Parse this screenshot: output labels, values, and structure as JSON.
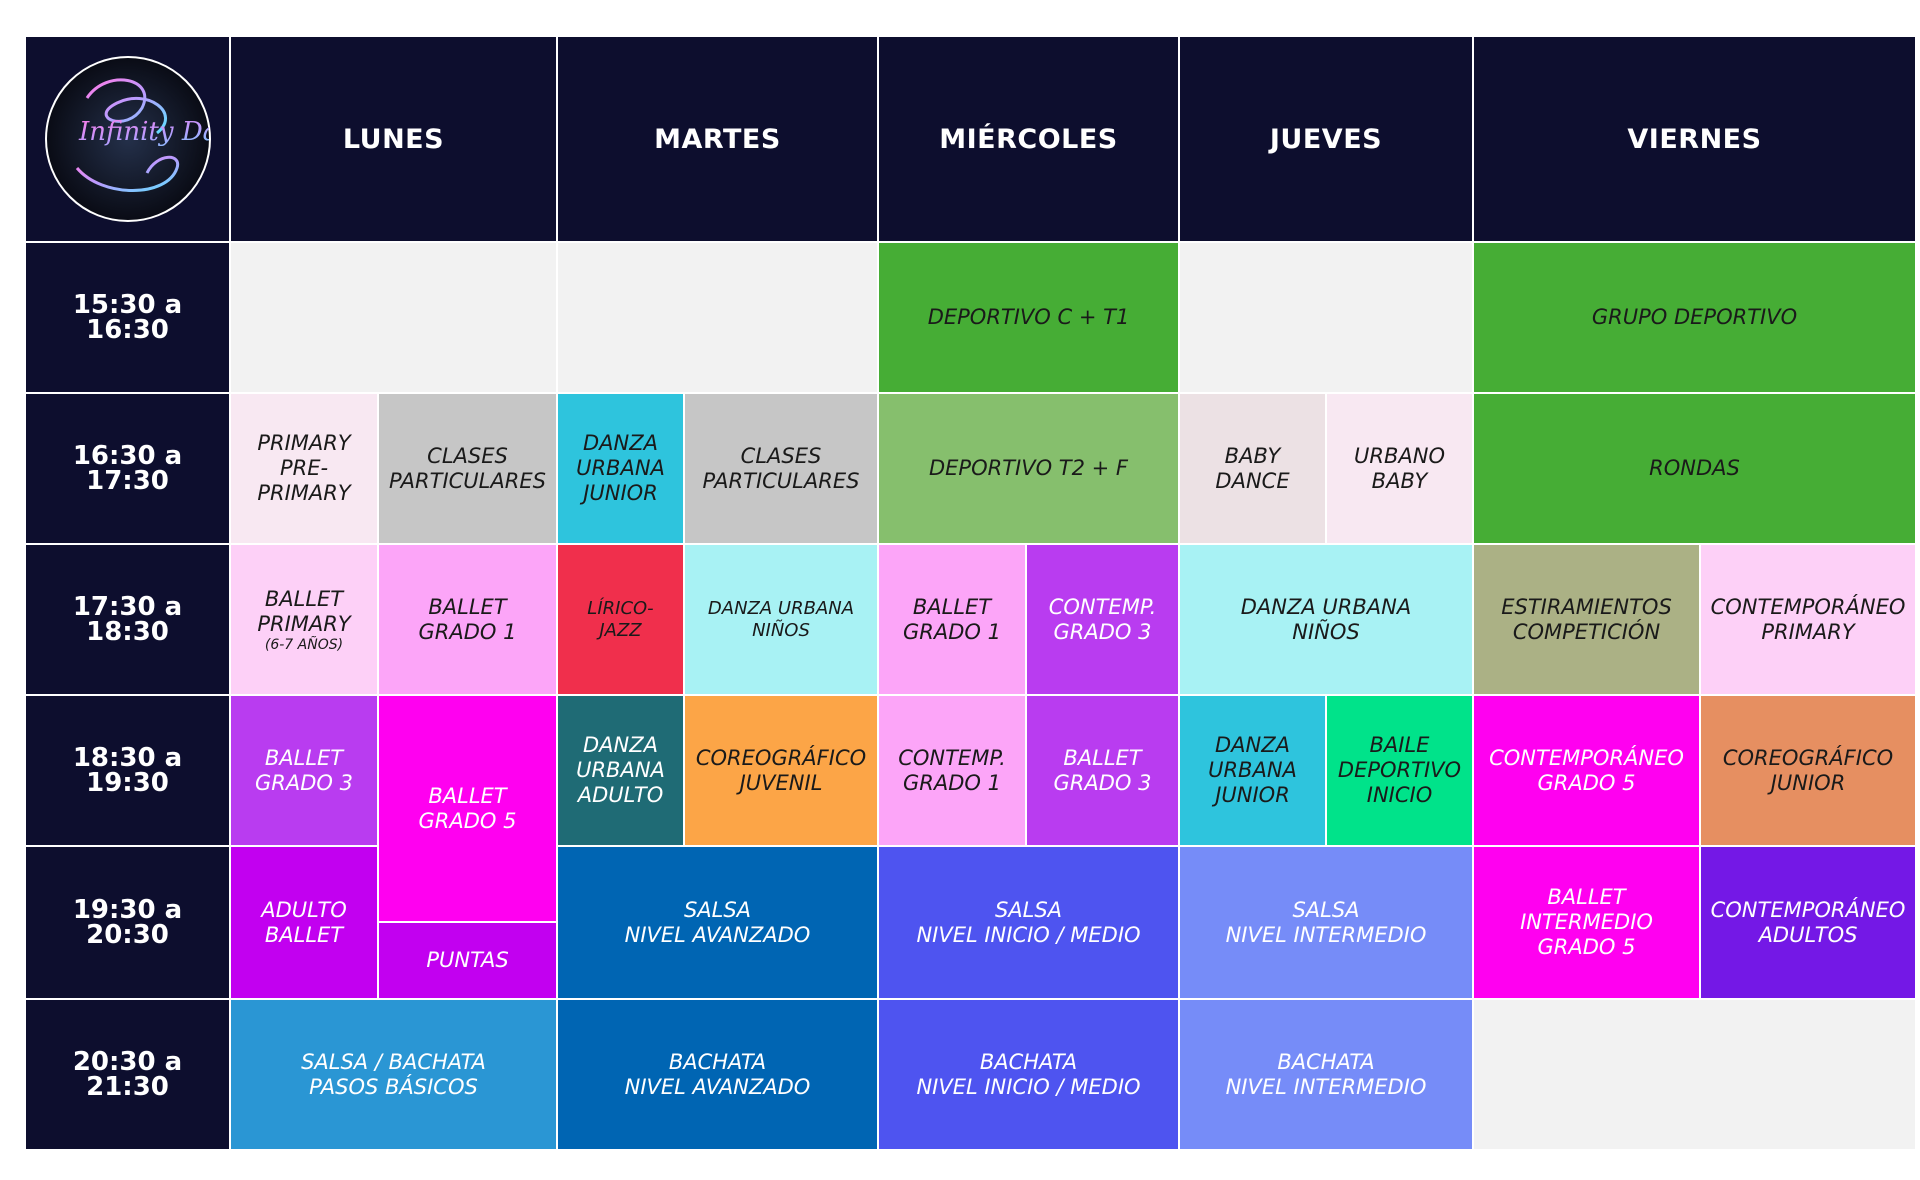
{
  "logo": {
    "text": "Infinity Dance"
  },
  "days": [
    "LUNES",
    "MARTES",
    "MIÉRCOLES",
    "JUEVES",
    "VIERNES"
  ],
  "times": [
    "15:30 a 16:30",
    "16:30 a 17:30",
    "17:30 a 18:30",
    "18:30 a 19:30",
    "19:30 a 20:30",
    "20:30 a 21:30"
  ],
  "classes": {
    "deportivo_ct1": "DEPORTIVO C + T1",
    "grupo_deportivo": "GRUPO DEPORTIVO",
    "primary_preprimary": "PRIMARY\nPRE-\nPRIMARY",
    "clases_particulares_lunes": "CLASES\nPARTICULARES",
    "danza_urbana_junior_martes": "DANZA\nURBANA\nJUNIOR",
    "clases_particulares_martes": "CLASES\nPARTICULARES",
    "deportivo_t2f": "DEPORTIVO T2 + F",
    "baby_dance": "BABY\nDANCE",
    "urbano_baby": "URBANO\nBABY",
    "rondas": "RONDAS",
    "ballet_primary": "BALLET\nPRIMARY",
    "ballet_primary_age": "(6-7 AÑOS)",
    "ballet_grado1_lunes": "BALLET\nGRADO 1",
    "lirico_jazz": "LÍRICO-\nJAZZ",
    "danza_urbana_ninos_martes": "DANZA URBANA\nNIÑOS",
    "ballet_grado1_miercoles": "BALLET\nGRADO 1",
    "contemp_grado3": "CONTEMP.\nGRADO 3",
    "danza_urbana_ninos_jueves": "DANZA URBANA\nNIÑOS",
    "estiramientos": "ESTIRAMIENTOS\nCOMPETICIÓN",
    "contemporaneo_primary": "CONTEMPORÁNEO\nPRIMARY",
    "ballet_grado3_lunes": "BALLET\nGRADO 3",
    "ballet_grado5": "BALLET\nGRADO 5",
    "danza_urbana_adulto": "DANZA\nURBANA\nADULTO",
    "coreografico_juvenil": "COREOGRÁFICO\nJUVENIL",
    "contemp_grado1": "CONTEMP.\nGRADO 1",
    "ballet_grado3_miercoles": "BALLET\nGRADO 3",
    "danza_urbana_junior_jueves": "DANZA\nURBANA\nJUNIOR",
    "baile_deportivo_inicio": "BAILE\nDEPORTIVO\nINICIO",
    "contemporaneo_grado5": "CONTEMPORÁNEO\nGRADO 5",
    "coreografico_junior": "COREOGRÁFICO\nJUNIOR",
    "adulto_ballet": "ADULTO\nBALLET",
    "puntas": "PUNTAS",
    "salsa_avanzado": "SALSA\nNIVEL AVANZADO",
    "salsa_inicio_medio": "SALSA\nNIVEL INICIO / MEDIO",
    "salsa_intermedio": "SALSA\nNIVEL INTERMEDIO",
    "ballet_intermedio_grado5": "BALLET\nINTERMEDIO\nGRADO 5",
    "contemporaneo_adultos": "CONTEMPORÁNEO\nADULTOS",
    "salsa_bachata_basicos": "SALSA / BACHATA\nPASOS BÁSICOS",
    "bachata_avanzado": "BACHATA\nNIVEL AVANZADO",
    "bachata_inicio_medio": "BACHATA\nNIVEL INICIO / MEDIO",
    "bachata_intermedio": "BACHATA\nNIVEL INTERMEDIO"
  },
  "colors": {
    "header_bg": "#0d0e2e",
    "empty": "#f2f2f2",
    "green": "#46ad35",
    "light_green": "#86bf6d",
    "pale_pink": "#f8e8f2",
    "grey": "#c6c6c6",
    "cyan": "#2ec4dd",
    "pink": "#fca5f8",
    "red": "#f02f4c",
    "light_cyan": "#a8f2f4",
    "purple": "#b93cf0",
    "olive": "#abb185",
    "magenta": "#ff00f0",
    "teal": "#1f6b75",
    "orange": "#fca547",
    "salmon": "#e68f61",
    "mint": "#00e38a",
    "blue": "#0065b3",
    "indigo": "#4e54f0",
    "periwinkle": "#768cf8",
    "violet": "#7418e6",
    "sky": "#2a96d4"
  }
}
